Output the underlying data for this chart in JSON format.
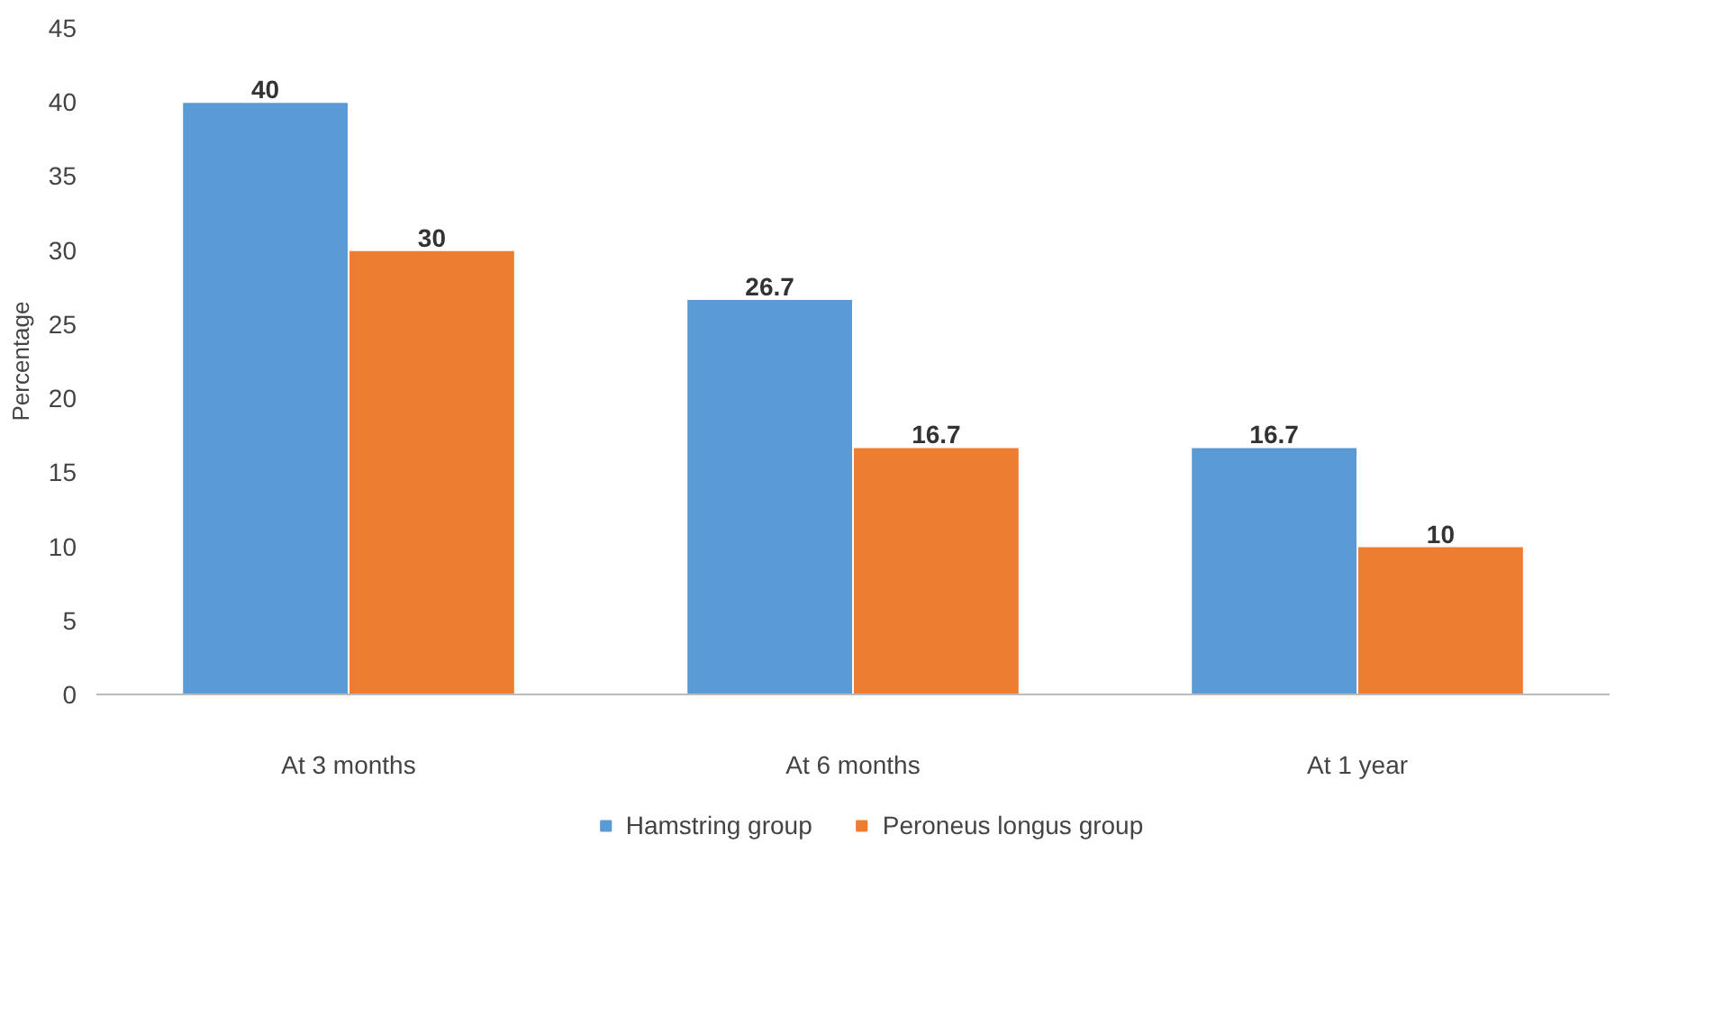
{
  "chart_data": {
    "type": "bar",
    "ylabel": "Percentage",
    "categories": [
      "At 3 months",
      "At 6 months",
      "At 1 year"
    ],
    "series": [
      {
        "name": "Hamstring group",
        "color": "#5b9bd5",
        "values": [
          40,
          26.7,
          16.7
        ]
      },
      {
        "name": "Peroneus longus group",
        "color": "#ed7d31",
        "values": [
          30,
          16.7,
          10
        ]
      }
    ],
    "ylim": [
      0,
      45
    ],
    "yticks": [
      0,
      5,
      10,
      15,
      20,
      25,
      30,
      35,
      40,
      45
    ],
    "grid": false,
    "legend": "bottom",
    "data_labels": true
  }
}
